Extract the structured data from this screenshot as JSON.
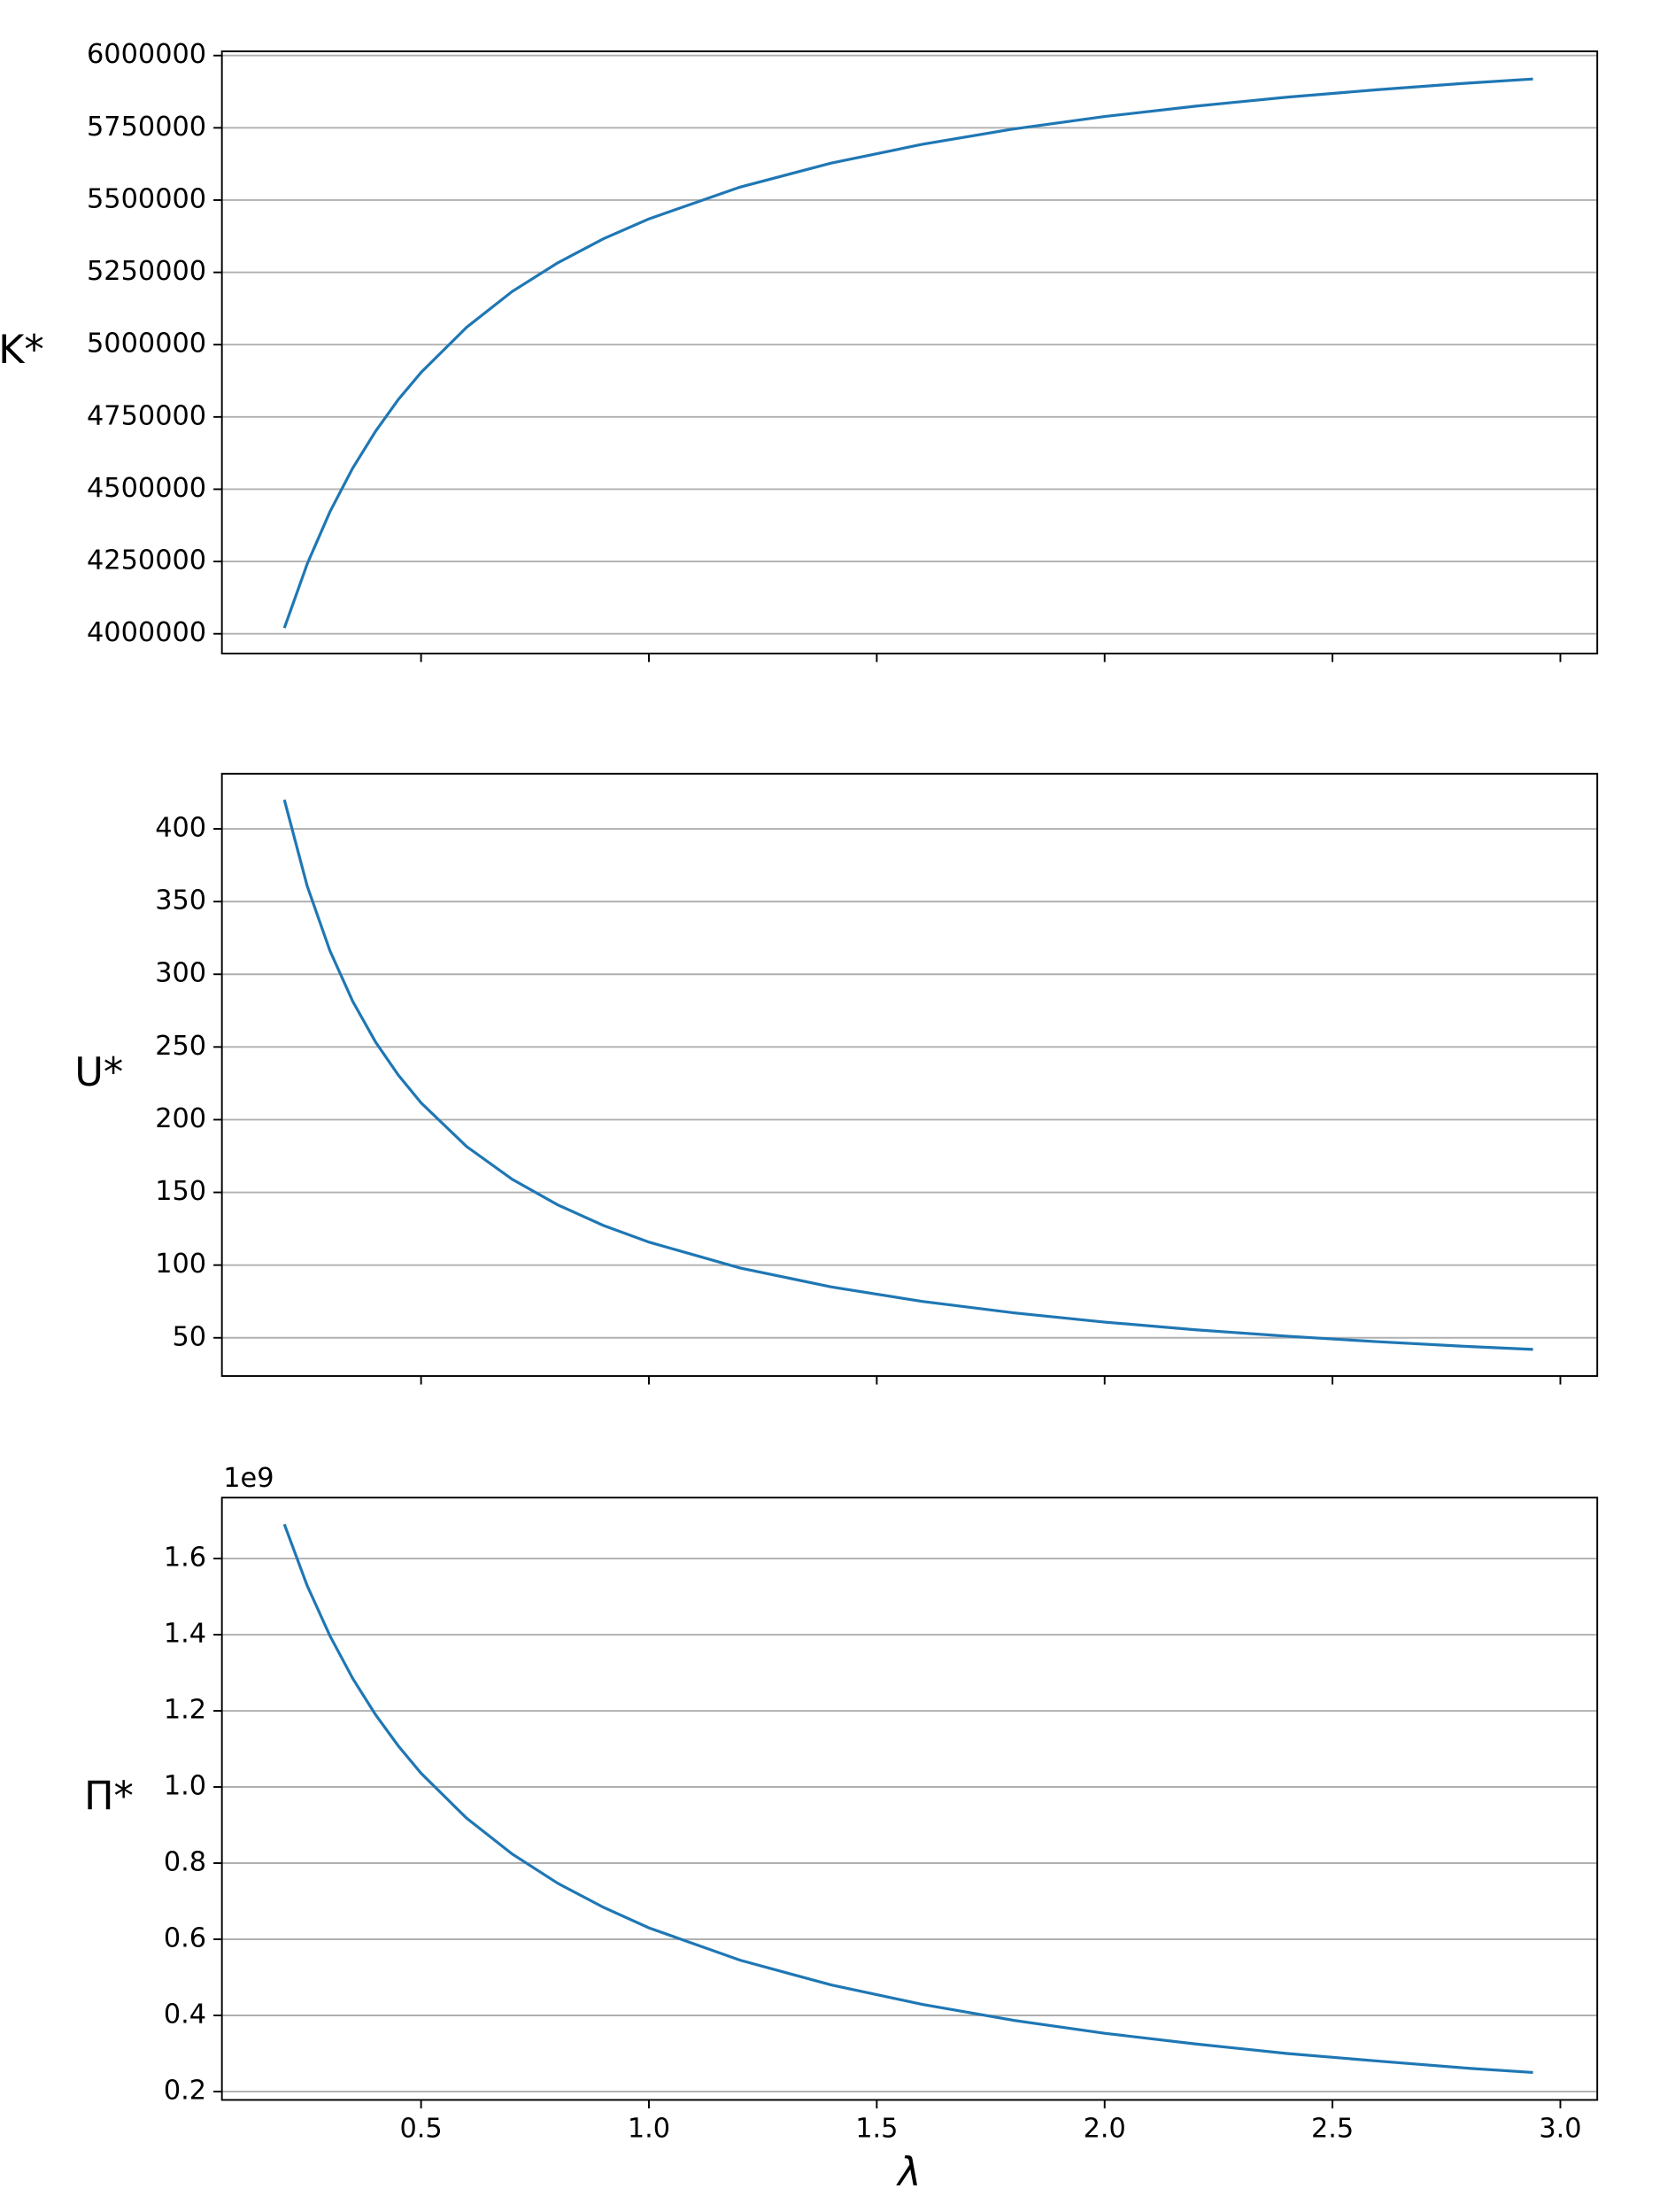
{
  "chart_data": [
    {
      "type": "line",
      "ylabel": "K*",
      "x": [
        0.2,
        0.25,
        0.3,
        0.35,
        0.4,
        0.45,
        0.5,
        0.6,
        0.7,
        0.8,
        0.9,
        1.0,
        1.2,
        1.4,
        1.6,
        1.8,
        2.0,
        2.2,
        2.4,
        2.6,
        2.8,
        2.94
      ],
      "values": [
        4020000,
        4241000,
        4422000,
        4573000,
        4700000,
        4810000,
        4904000,
        5060000,
        5184000,
        5283000,
        5366000,
        5435000,
        5545000,
        5628000,
        5693000,
        5746000,
        5789000,
        5825000,
        5856000,
        5882000,
        5905000,
        5919000
      ],
      "color": "#1f77b4",
      "xlim": [
        0.063,
        3.081
      ],
      "ylim": [
        3931500,
        6014700
      ],
      "yticks": [
        4000000,
        4250000,
        4500000,
        4750000,
        5000000,
        5250000,
        5500000,
        5750000,
        6000000
      ],
      "grid": true
    },
    {
      "type": "line",
      "ylabel": "U*",
      "x": [
        0.2,
        0.25,
        0.3,
        0.35,
        0.4,
        0.45,
        0.5,
        0.6,
        0.7,
        0.8,
        0.9,
        1.0,
        1.2,
        1.4,
        1.6,
        1.8,
        2.0,
        2.2,
        2.4,
        2.6,
        2.8,
        2.94
      ],
      "values": [
        420.0,
        360.8,
        316.2,
        281.4,
        253.5,
        230.7,
        211.6,
        181.5,
        159.0,
        141.4,
        127.3,
        115.8,
        98.0,
        85.0,
        75.0,
        67.2,
        60.8,
        55.5,
        51.1,
        47.3,
        44.0,
        42.0
      ],
      "color": "#1f77b4",
      "xlim": [
        0.063,
        3.081
      ],
      "ylim": [
        23.7,
        437.9
      ],
      "yticks": [
        50,
        100,
        150,
        200,
        250,
        300,
        350,
        400
      ],
      "grid": true
    },
    {
      "type": "line",
      "ylabel": "Π*",
      "xlabel": "λ",
      "y_offset_label": "1e9",
      "x": [
        0.2,
        0.25,
        0.3,
        0.35,
        0.4,
        0.45,
        0.5,
        0.6,
        0.7,
        0.8,
        0.9,
        1.0,
        1.2,
        1.4,
        1.6,
        1.8,
        2.0,
        2.2,
        2.4,
        2.6,
        2.8,
        2.94
      ],
      "values": [
        1.69,
        1.529,
        1.397,
        1.285,
        1.19,
        1.108,
        1.036,
        0.918,
        0.824,
        0.747,
        0.684,
        0.63,
        0.545,
        0.48,
        0.429,
        0.387,
        0.353,
        0.325,
        0.3,
        0.28,
        0.261,
        0.25
      ],
      "color": "#1f77b4",
      "xlim": [
        0.063,
        3.081
      ],
      "ylim": [
        0.178,
        1.76
      ],
      "yticks": [
        0.2,
        0.4,
        0.6,
        0.8,
        {
          "value": 1,
          "label": "1.0"
        },
        1.2,
        1.4,
        1.6
      ],
      "xticks": [
        0.5,
        {
          "value": 1,
          "label": "1.0"
        },
        1.5,
        {
          "value": 2,
          "label": "2.0"
        },
        2.5,
        {
          "value": 3,
          "label": "3.0"
        }
      ],
      "grid": true
    }
  ]
}
